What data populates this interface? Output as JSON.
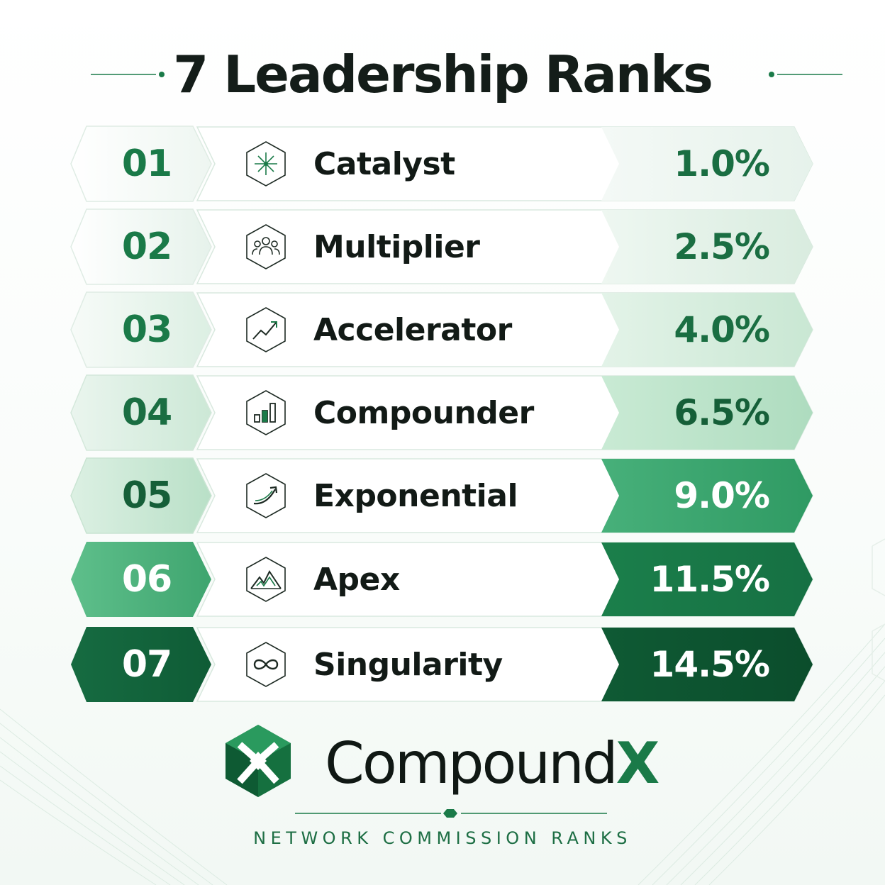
{
  "title": "7 Leadership Ranks",
  "ranks": [
    {
      "number": "01",
      "name": "Catalyst",
      "percent": "1.0%",
      "icon": "sparkle-icon"
    },
    {
      "number": "02",
      "name": "Multiplier",
      "percent": "2.5%",
      "icon": "group-icon"
    },
    {
      "number": "03",
      "name": "Accelerator",
      "percent": "4.0%",
      "icon": "trend-up-icon"
    },
    {
      "number": "04",
      "name": "Compounder",
      "percent": "6.5%",
      "icon": "bar-chart-icon"
    },
    {
      "number": "05",
      "name": "Exponential",
      "percent": "9.0%",
      "icon": "curve-arrow-icon"
    },
    {
      "number": "06",
      "name": "Apex",
      "percent": "11.5%",
      "icon": "mountain-icon"
    },
    {
      "number": "07",
      "name": "Singularity",
      "percent": "14.5%",
      "icon": "infinity-icon"
    }
  ],
  "brand": {
    "name": "Compound",
    "suffix": "X",
    "tagline": "NETWORK COMMISSION RANKS"
  },
  "colors": {
    "dark_green": "#0d5e36",
    "green": "#1a7a48",
    "text_dark": "#121a16"
  }
}
